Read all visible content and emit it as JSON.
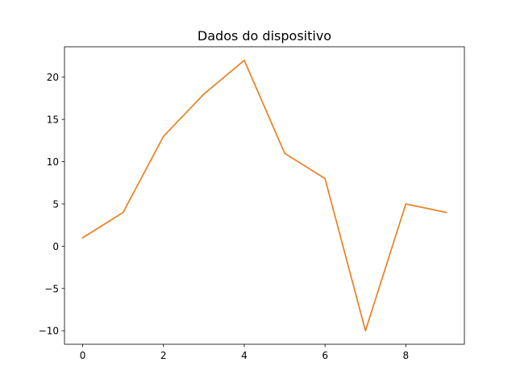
{
  "chart_data": {
    "type": "line",
    "title": "Dados do dispositivo",
    "xlabel": "",
    "ylabel": "",
    "x": [
      0,
      1,
      2,
      3,
      4,
      5,
      6,
      7,
      8,
      9
    ],
    "series": [
      {
        "values": [
          1,
          4,
          13,
          18,
          22,
          11,
          8,
          -10,
          5,
          4
        ],
        "color": "#1f77b4"
      },
      {
        "values": [
          1,
          4,
          13,
          18,
          22,
          11,
          8,
          -10,
          5,
          4
        ],
        "color": "#ff7f0e"
      }
    ],
    "xlim": [
      -0.45,
      9.45
    ],
    "ylim": [
      -11.6,
      23.6
    ],
    "xticks": [
      0,
      2,
      4,
      6,
      8
    ],
    "xtick_labels": [
      "0",
      "2",
      "4",
      "6",
      "8"
    ],
    "yticks": [
      -10,
      -5,
      0,
      5,
      10,
      15,
      20
    ],
    "ytick_labels": [
      "−10",
      "−5",
      "0",
      "5",
      "10",
      "15",
      "20"
    ],
    "grid": false,
    "legend": "none"
  }
}
